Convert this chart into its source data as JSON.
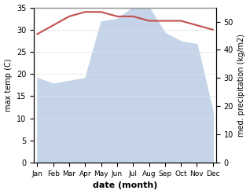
{
  "months": [
    "Jan",
    "Feb",
    "Mar",
    "Apr",
    "May",
    "Jun",
    "Jul",
    "Aug",
    "Sep",
    "Oct",
    "Nov",
    "Dec"
  ],
  "month_x": [
    0,
    1,
    2,
    3,
    4,
    5,
    6,
    7,
    8,
    9,
    10,
    11
  ],
  "temperature": [
    29,
    31,
    33,
    34,
    34,
    33,
    33,
    32,
    32,
    32,
    31,
    30
  ],
  "precipitation": [
    30,
    28,
    29,
    30,
    50,
    51,
    55,
    55,
    46,
    43,
    42,
    18
  ],
  "temp_color": "#c0504d",
  "precip_fill_color": "#c5d4e8",
  "ylabel_left": "max temp (C)",
  "ylabel_right": "med. precipitation (kg/m2)",
  "xlabel": "date (month)",
  "ylim_left": [
    0,
    35
  ],
  "ylim_right": [
    0,
    55
  ],
  "yticks_left": [
    0,
    5,
    10,
    15,
    20,
    25,
    30,
    35
  ],
  "yticks_right": [
    0,
    10,
    20,
    30,
    40,
    50
  ],
  "background_color": "#ffffff"
}
